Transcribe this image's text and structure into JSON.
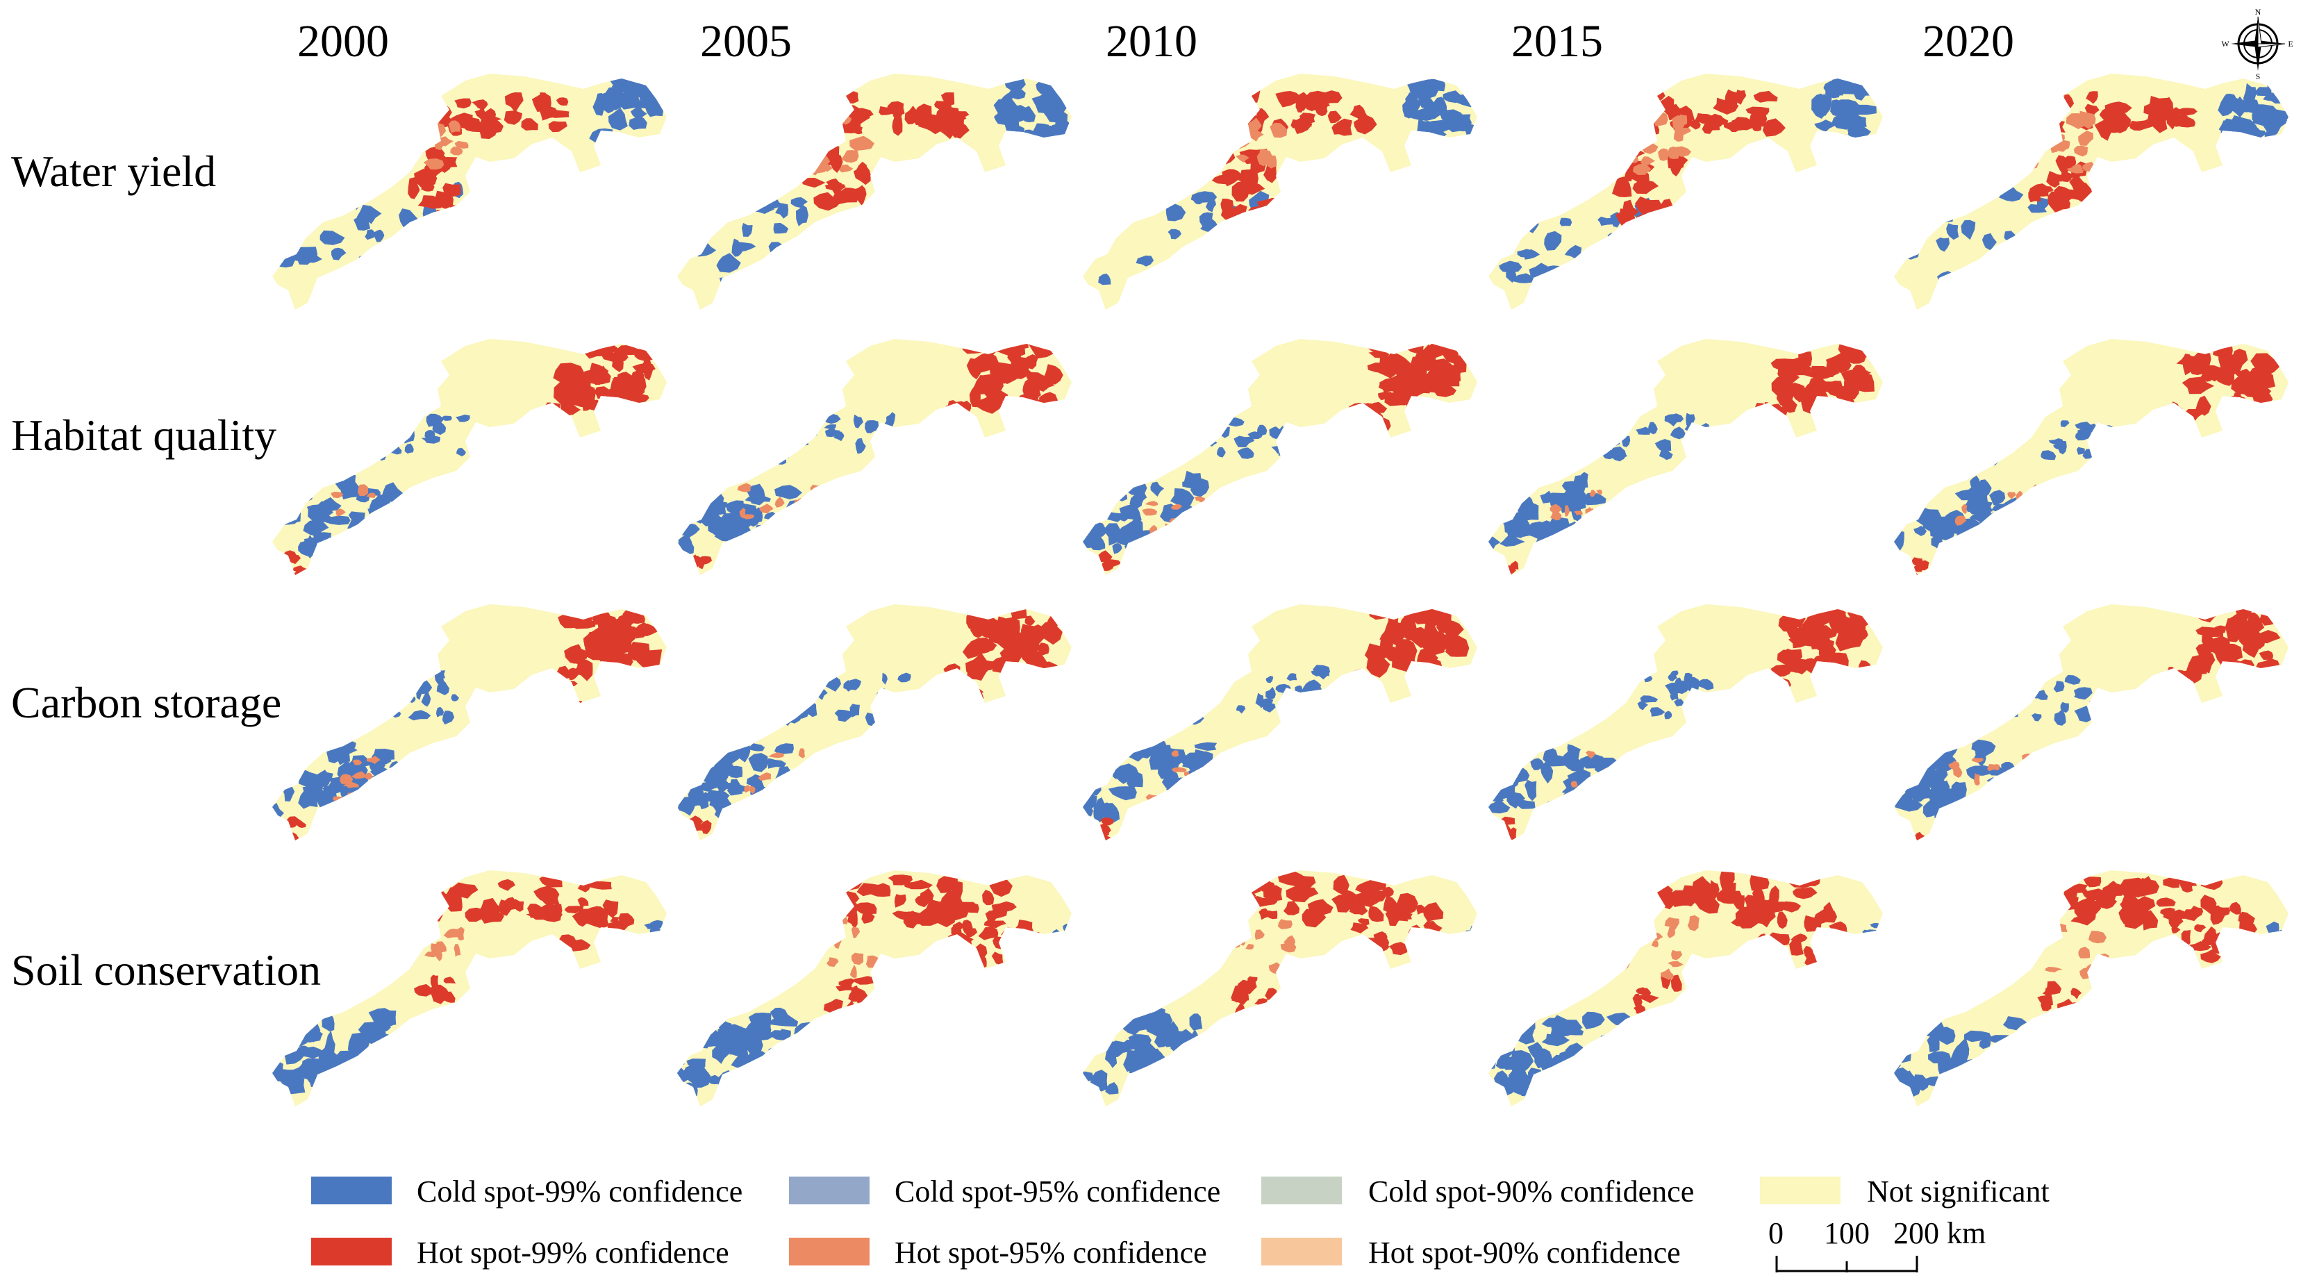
{
  "years": [
    "2000",
    "2005",
    "2010",
    "2015",
    "2020"
  ],
  "services": [
    "Water yield",
    "Habitat quality",
    "Carbon storage",
    "Soil conservation"
  ],
  "legend": {
    "items": [
      {
        "key": "cold99",
        "label": "Cold spot-99% confidence",
        "color": "#4a78c0"
      },
      {
        "key": "cold95",
        "label": "Cold spot-95% confidence",
        "color": "#93a8c8"
      },
      {
        "key": "cold90",
        "label": "Cold spot-90% confidence",
        "color": "#c8d2c4"
      },
      {
        "key": "ns",
        "label": "Not significant",
        "color": "#fbf7bd"
      },
      {
        "key": "hot99",
        "label": "Hot spot-99% confidence",
        "color": "#dc3b2c"
      },
      {
        "key": "hot95",
        "label": "Hot spot-95% confidence",
        "color": "#ec8a63"
      },
      {
        "key": "hot90",
        "label": "Hot spot-90% confidence",
        "color": "#f7c79b"
      }
    ]
  },
  "scale_bar": {
    "ticks": [
      "0",
      "100",
      "200 km"
    ]
  },
  "north_arrow": {
    "icon": "compass-rose-icon",
    "labels": {
      "n": "N",
      "e": "E",
      "s": "S",
      "w": "W"
    }
  }
}
